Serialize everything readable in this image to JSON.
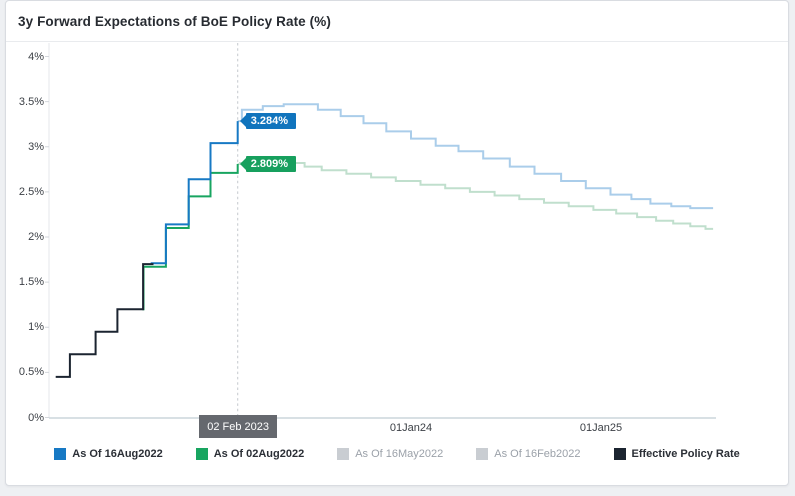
{
  "title": "3y Forward Expectations of BoE Policy Rate (%)",
  "chart_data": {
    "type": "line",
    "step": true,
    "title": "3y Forward Expectations of BoE Policy Rate (%)",
    "grid": false,
    "legend_position": "bottom",
    "y_axis": {
      "unit": "%",
      "range": [
        0,
        4
      ],
      "tick_step": 0.5,
      "tick_labels": [
        "0%",
        "0.5%",
        "1%",
        "1.5%",
        "2%",
        "2.5%",
        "3%",
        "3.5%",
        "4%"
      ]
    },
    "x_axis": {
      "range_years": [
        2022.09,
        2025.61
      ],
      "ticks": [
        {
          "t": 2024.0,
          "label": "01Jan24"
        },
        {
          "t": 2025.0,
          "label": "01Jan25"
        }
      ]
    },
    "crosshair": {
      "t": 2023.088,
      "date_label": "02 Feb 2023",
      "badge_bg": "#65686e",
      "values": [
        {
          "series": "As Of 16Aug2022",
          "label": "3.284%",
          "value": 3.284,
          "color": "#1074bd"
        },
        {
          "series": "As Of 02Aug2022",
          "label": "2.809%",
          "value": 2.809,
          "color": "#17a05e"
        }
      ]
    },
    "series": [
      {
        "name": "As Of 02Aug2022",
        "color": "#18a560",
        "faded_color": "#c0dfcd",
        "width": 2,
        "points": [
          [
            2022.585,
            1.2
          ],
          [
            2022.592,
            1.67
          ],
          [
            2022.71,
            2.1
          ],
          [
            2022.83,
            2.45
          ],
          [
            2022.945,
            2.71
          ],
          [
            2023.088,
            2.809
          ]
        ],
        "faded_points": [
          [
            2023.088,
            2.809
          ],
          [
            2023.1,
            2.82
          ],
          [
            2023.44,
            2.78
          ],
          [
            2023.53,
            2.74
          ],
          [
            2023.66,
            2.7
          ],
          [
            2023.79,
            2.66
          ],
          [
            2023.92,
            2.62
          ],
          [
            2024.05,
            2.58
          ],
          [
            2024.18,
            2.54
          ],
          [
            2024.31,
            2.5
          ],
          [
            2024.44,
            2.46
          ],
          [
            2024.57,
            2.42
          ],
          [
            2024.7,
            2.38
          ],
          [
            2024.83,
            2.34
          ],
          [
            2024.96,
            2.3
          ],
          [
            2025.08,
            2.26
          ],
          [
            2025.19,
            2.22
          ],
          [
            2025.29,
            2.18
          ],
          [
            2025.38,
            2.15
          ],
          [
            2025.47,
            2.12
          ],
          [
            2025.55,
            2.09
          ],
          [
            2025.59,
            2.09
          ]
        ]
      },
      {
        "name": "As Of 16Aug2022",
        "color": "#1779c4",
        "faded_color": "#aacdea",
        "width": 2,
        "points": [
          [
            2022.63,
            1.71
          ],
          [
            2022.71,
            2.14
          ],
          [
            2022.83,
            2.64
          ],
          [
            2022.945,
            3.04
          ],
          [
            2023.088,
            3.284
          ]
        ],
        "faded_points": [
          [
            2023.088,
            3.284
          ],
          [
            2023.11,
            3.41
          ],
          [
            2023.22,
            3.45
          ],
          [
            2023.33,
            3.47
          ],
          [
            2023.51,
            3.41
          ],
          [
            2023.63,
            3.34
          ],
          [
            2023.75,
            3.26
          ],
          [
            2023.87,
            3.17
          ],
          [
            2024.0,
            3.09
          ],
          [
            2024.13,
            3.01
          ],
          [
            2024.25,
            2.95
          ],
          [
            2024.38,
            2.87
          ],
          [
            2024.52,
            2.78
          ],
          [
            2024.65,
            2.7
          ],
          [
            2024.79,
            2.62
          ],
          [
            2024.92,
            2.54
          ],
          [
            2025.05,
            2.47
          ],
          [
            2025.16,
            2.42
          ],
          [
            2025.26,
            2.37
          ],
          [
            2025.37,
            2.34
          ],
          [
            2025.47,
            2.32
          ],
          [
            2025.59,
            2.32
          ]
        ]
      },
      {
        "name": "Effective Policy Rate",
        "color": "#1b2430",
        "width": 2,
        "points": [
          [
            2022.13,
            0.45
          ],
          [
            2022.205,
            0.7
          ],
          [
            2022.34,
            0.95
          ],
          [
            2022.455,
            1.2
          ],
          [
            2022.59,
            1.7
          ],
          [
            2022.645,
            1.7
          ]
        ]
      },
      {
        "name": "As Of 16May2022",
        "hidden": true
      },
      {
        "name": "As Of 16Feb2022",
        "hidden": true
      }
    ],
    "legend": [
      {
        "label": "As Of 16Aug2022",
        "color": "#1779c4",
        "active": true
      },
      {
        "label": "As Of 02Aug2022",
        "color": "#18a560",
        "active": true
      },
      {
        "label": "As Of 16May2022",
        "color": "#c9cdd2",
        "active": false
      },
      {
        "label": "As Of 16Feb2022",
        "color": "#c9cdd2",
        "active": false
      },
      {
        "label": "Effective Policy Rate",
        "color": "#1b2430",
        "active": true
      }
    ]
  }
}
